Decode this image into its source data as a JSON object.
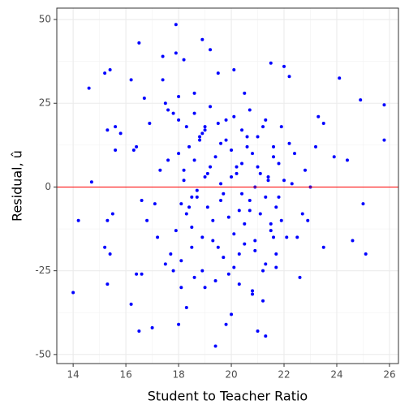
{
  "chart_data": {
    "type": "scatter",
    "x_label": "Student to Teacher Ratio",
    "y_label": "Residual, û",
    "xlim": [
      13.38,
      26.34
    ],
    "xticks": [
      14,
      16,
      18,
      20,
      22,
      24,
      26
    ],
    "ylim": [
      -52.7,
      53.4
    ],
    "yticks": [
      -50,
      -25,
      0,
      25,
      50
    ],
    "grid": true,
    "color": "#0000ff",
    "hline": 0,
    "hline_color": "#ff0000",
    "x": [
      14.0,
      14.2,
      14.6,
      14.7,
      15.2,
      15.4,
      15.3,
      15.3,
      15.2,
      15.4,
      15.3,
      15.5,
      15.6,
      15.6,
      15.8,
      16.2,
      16.3,
      16.4,
      16.5,
      16.6,
      16.6,
      16.4,
      16.2,
      16.5,
      16.7,
      16.8,
      17.0,
      16.9,
      17.1,
      17.2,
      17.4,
      17.4,
      17.5,
      17.6,
      17.6,
      17.8,
      17.8,
      17.9,
      17.9,
      18.0,
      18.1,
      18.2,
      18.3,
      18.5,
      18.6,
      18.8,
      18.9,
      19.0,
      19.2,
      19.4,
      19.5,
      19.8,
      20.0,
      20.1,
      20.3,
      20.5,
      20.6,
      20.8,
      21.0,
      21.2,
      21.3,
      21.5,
      21.6,
      22.0,
      22.2,
      22.4,
      22.6,
      22.8,
      22.9,
      23.0,
      23.2,
      23.3,
      23.5,
      23.5,
      23.9,
      24.1,
      24.4,
      24.6,
      24.9,
      25.0,
      25.1,
      25.8,
      25.8,
      18.0,
      18.2,
      18.4,
      18.6,
      18.8,
      19.0,
      19.2,
      19.4,
      19.6,
      19.8,
      20.0,
      20.2,
      20.4,
      20.6,
      20.8,
      21.0,
      21.2,
      21.4,
      21.6,
      21.8,
      18.1,
      18.3,
      18.5,
      18.7,
      18.9,
      19.1,
      19.3,
      19.5,
      19.7,
      19.9,
      20.1,
      20.3,
      20.5,
      20.7,
      20.9,
      21.1,
      21.3,
      21.5,
      21.7,
      21.9,
      18.0,
      18.3,
      18.6,
      18.9,
      19.2,
      19.5,
      19.8,
      20.1,
      20.4,
      20.7,
      21.0,
      21.3,
      21.6,
      21.9,
      22.2,
      17.7,
      18.1,
      18.5,
      18.9,
      19.3,
      19.7,
      20.1,
      20.5,
      20.9,
      21.3,
      21.7,
      22.1,
      18.2,
      18.7,
      19.1,
      19.6,
      20.0,
      20.4,
      20.9,
      21.4,
      21.8,
      22.3,
      17.5,
      18.0,
      18.6,
      19.0,
      19.4,
      19.9,
      20.3,
      20.8,
      21.2,
      21.7,
      22.5,
      17.3,
      17.9,
      18.4,
      19.0,
      19.6,
      20.2,
      20.7,
      21.1,
      21.5,
      22.0,
      22.7
    ],
    "values": [
      -31.5,
      -10,
      29.5,
      1.5,
      34,
      35,
      17,
      -10,
      -18,
      -20,
      -29,
      -8,
      18,
      11,
      16,
      32,
      11,
      12,
      43,
      -4,
      -26,
      -26,
      -35,
      -43,
      26.5,
      -10,
      -42,
      19,
      -5,
      -15,
      39,
      32,
      -23,
      23,
      8,
      22,
      -25,
      48.5,
      40,
      -41,
      -30,
      38,
      -36,
      -3,
      28,
      14,
      44,
      18,
      41,
      -47.5,
      34,
      -41,
      -38,
      35,
      -20,
      28,
      12,
      -32,
      -43,
      -34,
      -44.5,
      37,
      -15,
      36,
      33,
      10,
      -27,
      5,
      -10,
      0,
      12,
      21,
      19,
      -18,
      9,
      32.5,
      8,
      -16,
      26,
      -5,
      -20,
      24.5,
      14,
      10,
      5,
      12,
      8,
      15,
      17,
      6,
      9,
      13,
      20,
      11,
      4,
      7,
      15,
      10,
      6,
      18,
      3,
      9,
      7,
      -5,
      -8,
      -12,
      -3,
      -15,
      -6,
      -10,
      -18,
      -2,
      -9,
      -14,
      -7,
      -11,
      -4,
      -16,
      -8,
      -3,
      -13,
      -6,
      -10,
      20,
      18,
      22,
      16,
      24,
      19,
      14,
      21,
      17,
      23,
      15,
      20,
      12,
      18,
      13,
      -20,
      -22,
      -18,
      -25,
      -16,
      -21,
      -24,
      -17,
      -19,
      -23,
      -20,
      -15,
      2,
      -1,
      4,
      1,
      3,
      -2,
      0,
      2,
      -3,
      1,
      25,
      27,
      -27,
      -30,
      -28,
      -26,
      -29,
      -31,
      -25,
      -24,
      -15,
      5,
      -13,
      -6,
      3,
      -4,
      6,
      -7,
      4,
      -11,
      2,
      -8
    ]
  }
}
